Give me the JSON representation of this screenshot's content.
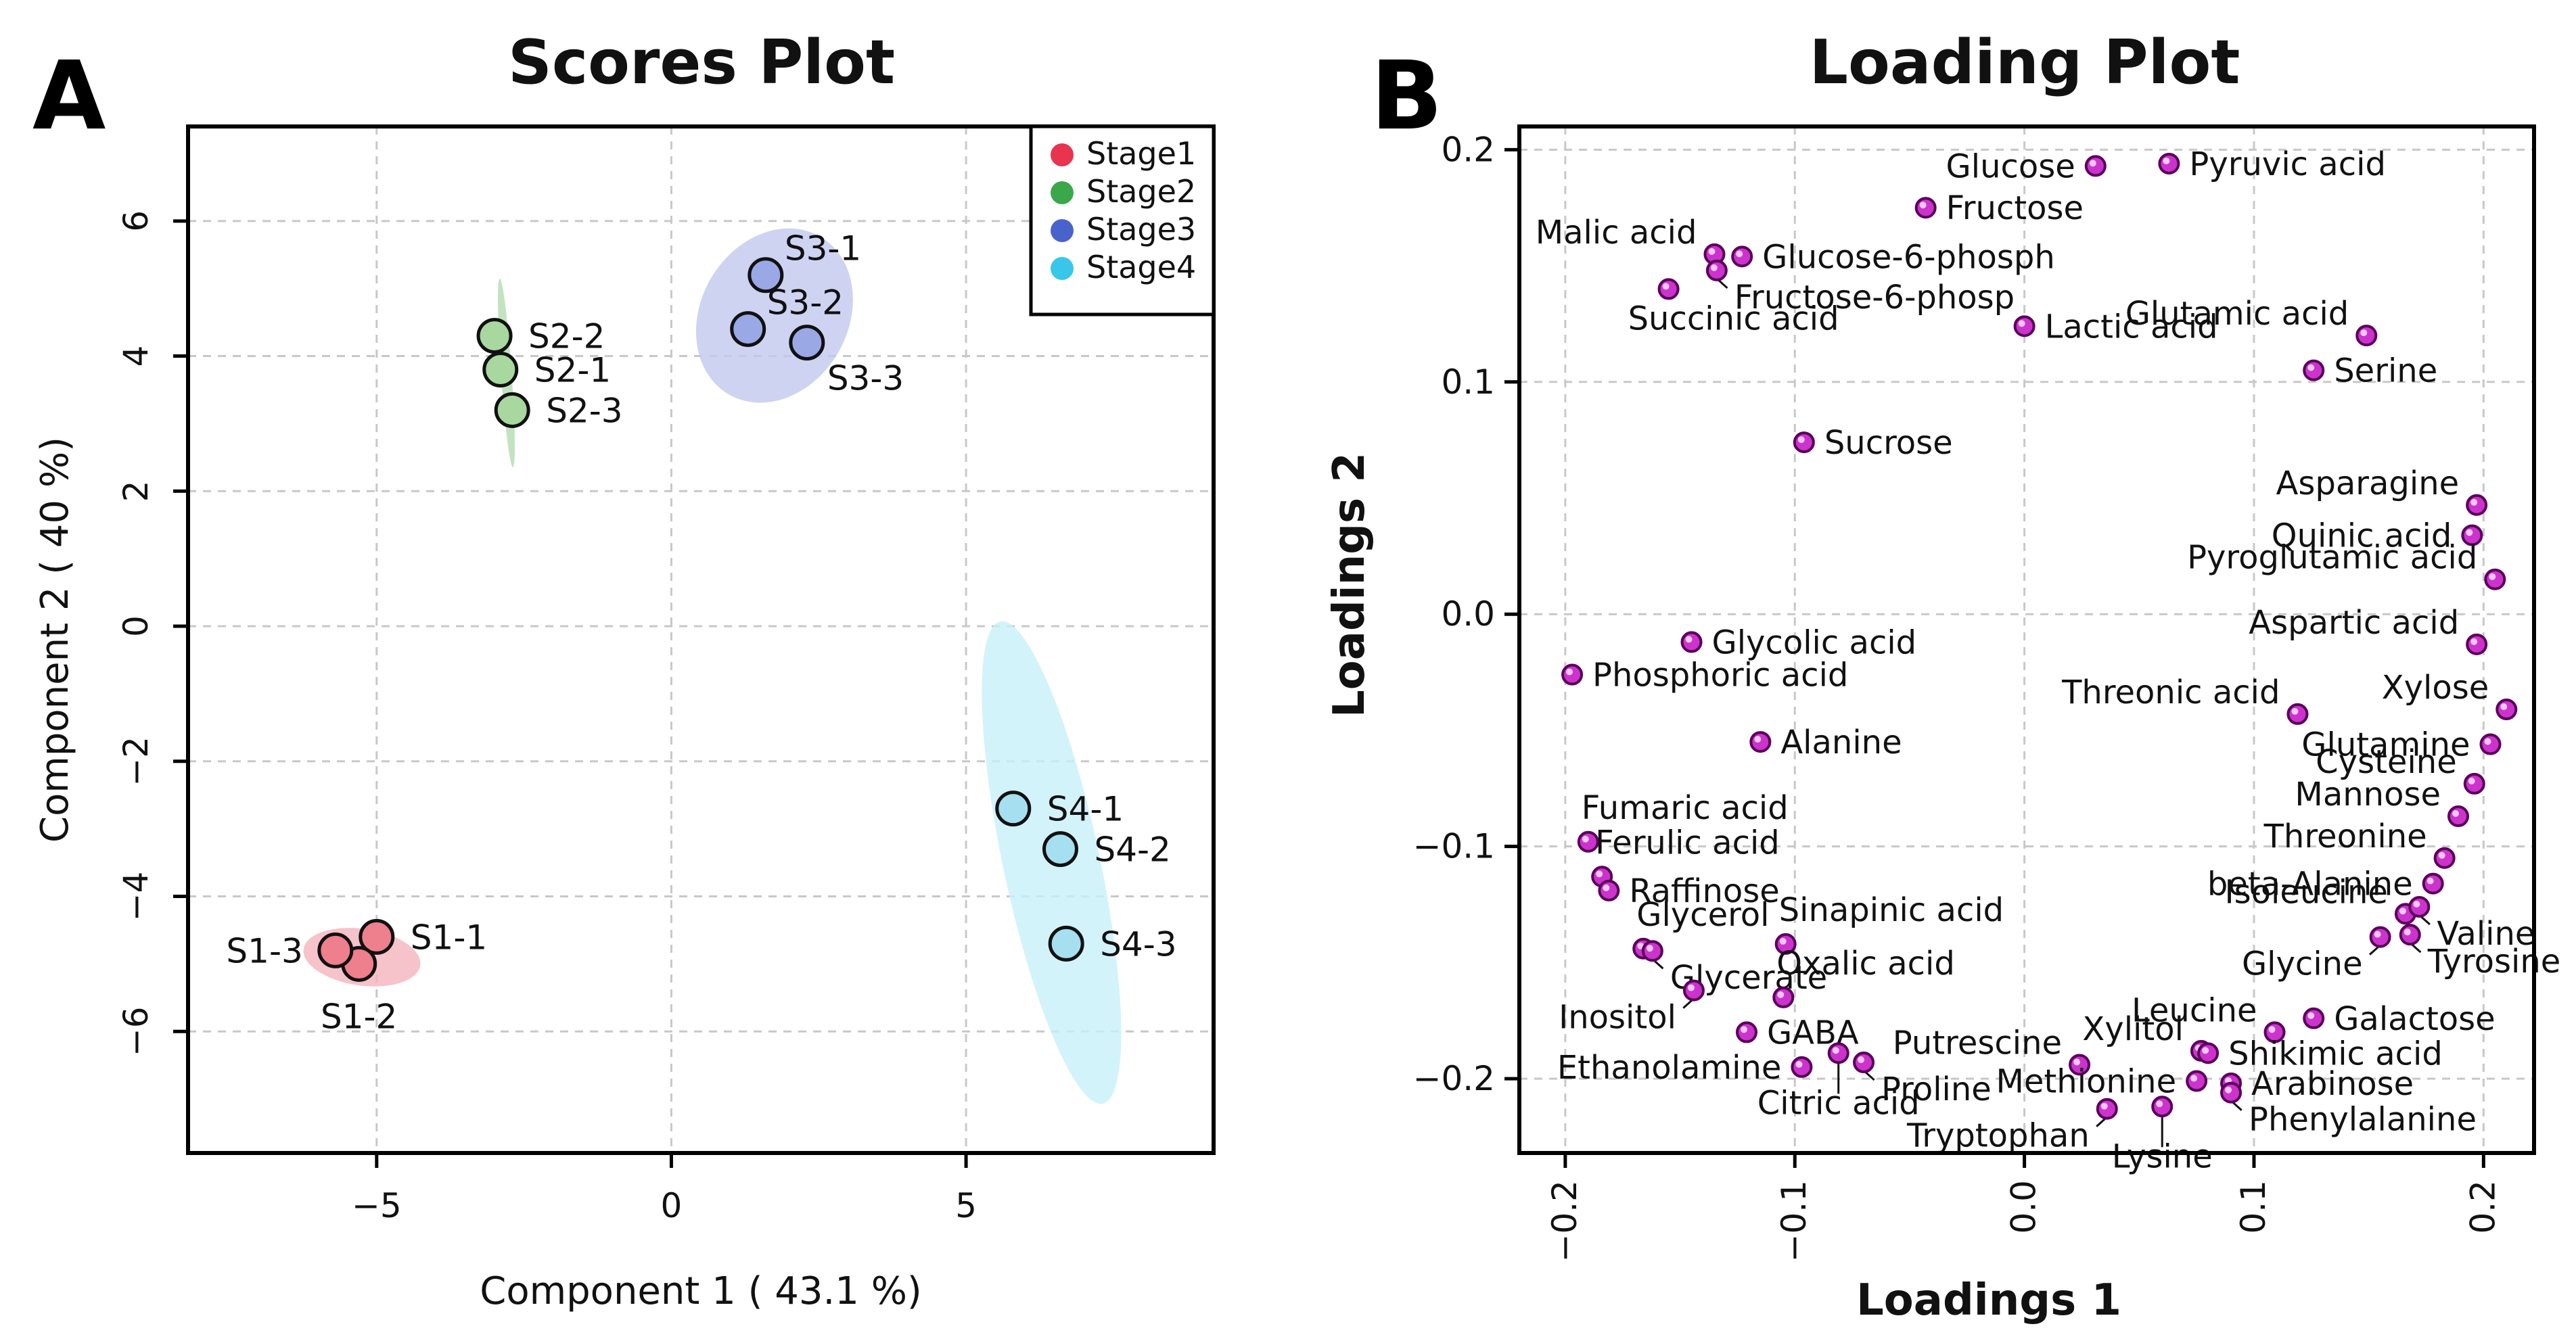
{
  "chart_data": [
    {
      "panel": "A",
      "type": "scatter",
      "title": "Scores Plot",
      "xlabel": "Component 1 ( 43.1 %)",
      "ylabel": "Component 2 ( 40 %)",
      "xlim": [
        -8.2,
        9.2
      ],
      "ylim": [
        -7.8,
        7.4
      ],
      "xticks": [
        -5,
        0,
        5
      ],
      "yticks": [
        -6,
        -4,
        -2,
        0,
        2,
        4,
        6
      ],
      "grid": true,
      "legend": {
        "position": "top-right",
        "entries": [
          {
            "name": "Stage1",
            "color": "#e8344e"
          },
          {
            "name": "Stage2",
            "color": "#3aa84a"
          },
          {
            "name": "Stage3",
            "color": "#4a63cc"
          },
          {
            "name": "Stage4",
            "color": "#38c6ea"
          }
        ]
      },
      "groups": [
        {
          "name": "Stage1",
          "point_color": "#ee7f8c",
          "ellipse_color": "#f4b4bd",
          "ellipse": {
            "cx": -5.25,
            "cy": -4.9,
            "rx": 1.0,
            "ry": 0.42,
            "angle": 8
          },
          "points": [
            {
              "label": "S1-1",
              "x": -5.0,
              "y": -4.6,
              "anchor": "right"
            },
            {
              "label": "S1-2",
              "x": -5.3,
              "y": -5.0,
              "anchor": "below"
            },
            {
              "label": "S1-3",
              "x": -5.7,
              "y": -4.8,
              "anchor": "left"
            }
          ]
        },
        {
          "name": "Stage2",
          "point_color": "#a8d8a0",
          "ellipse_color": "#b4dcb0",
          "ellipse": {
            "cx": -2.8,
            "cy": 3.75,
            "rx": 0.09,
            "ry": 1.4,
            "angle": -4
          },
          "points": [
            {
              "label": "S2-2",
              "x": -3.0,
              "y": 4.3,
              "anchor": "right"
            },
            {
              "label": "S2-1",
              "x": -2.9,
              "y": 3.8,
              "anchor": "right"
            },
            {
              "label": "S2-3",
              "x": -2.7,
              "y": 3.2,
              "anchor": "right"
            }
          ]
        },
        {
          "name": "Stage3",
          "point_color": "#9aa8e6",
          "ellipse_color": "#c2c8ee",
          "ellipse": {
            "cx": 1.75,
            "cy": 4.6,
            "rx": 1.25,
            "ry": 1.35,
            "angle": 30
          },
          "points": [
            {
              "label": "S3-1",
              "x": 1.6,
              "y": 5.2,
              "anchor": "upright"
            },
            {
              "label": "S3-2",
              "x": 1.3,
              "y": 4.4,
              "anchor": "upright2"
            },
            {
              "label": "S3-3",
              "x": 2.3,
              "y": 4.2,
              "anchor": "downright"
            }
          ]
        },
        {
          "name": "Stage4",
          "point_color": "#a6dff0",
          "ellipse_color": "#c8f0fa",
          "ellipse": {
            "cx": 6.45,
            "cy": -3.5,
            "rx": 0.82,
            "ry": 3.65,
            "angle": -12
          },
          "points": [
            {
              "label": "S4-1",
              "x": 5.8,
              "y": -2.7,
              "anchor": "right"
            },
            {
              "label": "S4-2",
              "x": 6.6,
              "y": -3.3,
              "anchor": "right"
            },
            {
              "label": "S4-3",
              "x": 6.7,
              "y": -4.7,
              "anchor": "right"
            }
          ]
        }
      ]
    },
    {
      "panel": "B",
      "type": "scatter",
      "title": "Loading Plot",
      "xlabel": "Loadings 1",
      "ylabel": "Loadings 2",
      "xlim": [
        -0.22,
        0.222
      ],
      "ylim": [
        -0.232,
        0.21
      ],
      "xticks": [
        -0.2,
        -0.1,
        0.0,
        0.1,
        0.2
      ],
      "xtick_labels": [
        "-0.2",
        "-0.1",
        "0.0",
        "0.1",
        "0.2"
      ],
      "yticks": [
        -0.2,
        -0.1,
        0.0,
        0.1,
        0.2
      ],
      "ytick_labels": [
        "-0.2",
        "-0.1",
        "0.0",
        "0.1",
        "0.2"
      ],
      "grid": true,
      "point_color": "#cc33cc",
      "points": [
        {
          "label": "Glucose",
          "x": 0.031,
          "y": 0.193,
          "anchor": "left"
        },
        {
          "label": "Pyruvic acid",
          "x": 0.063,
          "y": 0.194,
          "anchor": "right"
        },
        {
          "label": "Fructose",
          "x": -0.043,
          "y": 0.175,
          "anchor": "right"
        },
        {
          "label": "Malic acid",
          "x": -0.135,
          "y": 0.155,
          "anchor": "upleft"
        },
        {
          "label": "Glucose-6-phosph",
          "x": -0.123,
          "y": 0.154,
          "anchor": "right"
        },
        {
          "label": "Fructose-6-phosp",
          "x": -0.134,
          "y": 0.148,
          "anchor": "downright"
        },
        {
          "label": "Succinic acid",
          "x": -0.155,
          "y": 0.14,
          "anchor": "downright2"
        },
        {
          "label": "Lactic acid",
          "x": 0.0,
          "y": 0.124,
          "anchor": "right"
        },
        {
          "label": "Glutamic acid",
          "x": 0.149,
          "y": 0.12,
          "anchor": "upleft2"
        },
        {
          "label": "Serine",
          "x": 0.126,
          "y": 0.105,
          "anchor": "right"
        },
        {
          "label": "Sucrose",
          "x": -0.096,
          "y": 0.074,
          "anchor": "right"
        },
        {
          "label": "Asparagine",
          "x": 0.197,
          "y": 0.047,
          "anchor": "upleft"
        },
        {
          "label": "Quinic acid",
          "x": 0.195,
          "y": 0.034,
          "anchor": "left"
        },
        {
          "label": "Pyroglutamic acid",
          "x": 0.205,
          "y": 0.015,
          "anchor": "upleft"
        },
        {
          "label": "Aspartic acid",
          "x": 0.197,
          "y": -0.013,
          "anchor": "upleft"
        },
        {
          "label": "Glycolic acid",
          "x": -0.145,
          "y": -0.012,
          "anchor": "right"
        },
        {
          "label": "Phosphoric acid",
          "x": -0.197,
          "y": -0.026,
          "anchor": "right"
        },
        {
          "label": "Threonic acid",
          "x": 0.119,
          "y": -0.043,
          "anchor": "upleft"
        },
        {
          "label": "Xylose",
          "x": 0.21,
          "y": -0.041,
          "anchor": "upleft"
        },
        {
          "label": "Glutamine",
          "x": 0.203,
          "y": -0.056,
          "anchor": "left"
        },
        {
          "label": "Alanine",
          "x": -0.115,
          "y": -0.055,
          "anchor": "right"
        },
        {
          "label": "Cysteine",
          "x": 0.196,
          "y": -0.073,
          "anchor": "upleft"
        },
        {
          "label": "Mannose",
          "x": 0.189,
          "y": -0.087,
          "anchor": "upleft"
        },
        {
          "label": "Fumaric acid",
          "x": -0.19,
          "y": -0.098,
          "anchor": "upright"
        },
        {
          "label": "Threonine",
          "x": 0.183,
          "y": -0.105,
          "anchor": "upleft"
        },
        {
          "label": "Ferulic acid",
          "x": -0.184,
          "y": -0.113,
          "anchor": "upright"
        },
        {
          "label": "beta-Alanine",
          "x": 0.178,
          "y": -0.116,
          "anchor": "left"
        },
        {
          "label": "Raffinose",
          "x": -0.181,
          "y": -0.119,
          "anchor": "right"
        },
        {
          "label": "Isoleucine",
          "x": 0.166,
          "y": -0.129,
          "anchor": "upleft"
        },
        {
          "label": "Valine",
          "x": 0.172,
          "y": -0.126,
          "anchor": "downright"
        },
        {
          "label": "Tyrosine",
          "x": 0.168,
          "y": -0.138,
          "anchor": "downright"
        },
        {
          "label": "Glycerol",
          "x": -0.166,
          "y": -0.144,
          "anchor": "upright"
        },
        {
          "label": "Sinapinic acid",
          "x": -0.104,
          "y": -0.142,
          "anchor": "upright"
        },
        {
          "label": "Glycerate",
          "x": -0.162,
          "y": -0.145,
          "anchor": "downright"
        },
        {
          "label": "Glycine",
          "x": 0.155,
          "y": -0.139,
          "anchor": "downleft"
        },
        {
          "label": "Inositol",
          "x": -0.144,
          "y": -0.162,
          "anchor": "downleft"
        },
        {
          "label": "Oxalic acid",
          "x": -0.105,
          "y": -0.165,
          "anchor": "upright"
        },
        {
          "label": "Leucine",
          "x": 0.109,
          "y": -0.18,
          "anchor": "upleft"
        },
        {
          "label": "Galactose",
          "x": 0.126,
          "y": -0.174,
          "anchor": "right"
        },
        {
          "label": "GABA",
          "x": -0.121,
          "y": -0.18,
          "anchor": "right"
        },
        {
          "label": "Xylitol",
          "x": 0.077,
          "y": -0.188,
          "anchor": "upleft"
        },
        {
          "label": "Shikimic acid",
          "x": 0.08,
          "y": -0.189,
          "anchor": "right"
        },
        {
          "label": "Putrescine",
          "x": 0.024,
          "y": -0.194,
          "anchor": "upleft"
        },
        {
          "label": "Ethanolamine",
          "x": -0.097,
          "y": -0.195,
          "anchor": "left"
        },
        {
          "label": "Proline",
          "x": -0.07,
          "y": -0.193,
          "anchor": "downright"
        },
        {
          "label": "Citric acid",
          "x": -0.081,
          "y": -0.189,
          "anchor": "down"
        },
        {
          "label": "Methionine",
          "x": 0.075,
          "y": -0.201,
          "anchor": "left"
        },
        {
          "label": "Arabinose",
          "x": 0.09,
          "y": -0.202,
          "anchor": "right"
        },
        {
          "label": "Tryptophan",
          "x": 0.036,
          "y": -0.213,
          "anchor": "downleft"
        },
        {
          "label": "Lysine",
          "x": 0.06,
          "y": -0.212,
          "anchor": "down"
        },
        {
          "label": "Phenylalanine",
          "x": 0.09,
          "y": -0.206,
          "anchor": "downright"
        }
      ]
    }
  ]
}
